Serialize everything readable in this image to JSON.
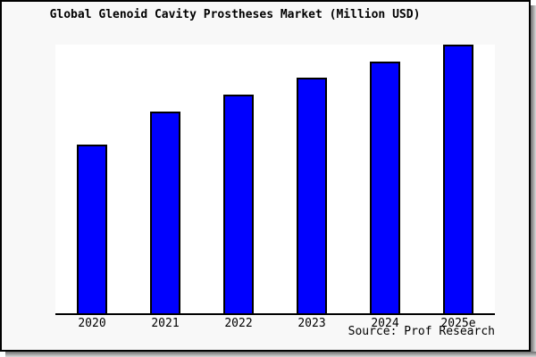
{
  "chart": {
    "title": "Global Glenoid Cavity Prostheses Market (Million USD)",
    "source": "Source: Prof Research"
  },
  "chart_data": {
    "type": "bar",
    "title": "Global Glenoid Cavity Prostheses Market (Million USD)",
    "categories": [
      "2020",
      "2021",
      "2022",
      "2023",
      "2024",
      "2025e"
    ],
    "values": [
      62.5,
      74.9,
      81.3,
      87.6,
      93.6,
      100
    ],
    "values_note": "No y-axis, gridlines or data labels are shown in the chart; values are bar heights relative to the tallest bar (2025e = 100)",
    "xlabel": "",
    "ylabel": "",
    "y_axis_visible": false,
    "gridlines": false,
    "legend": "none",
    "source": "Source: Prof Research",
    "colors": {
      "bar_fill": "#0000FE",
      "bar_border": "#000000",
      "canvas_background": "#F8F8F8",
      "plot_background": "#FFFFFF",
      "frame_border": "#000000",
      "shadow": "#6E6E6E",
      "text": "#000000"
    }
  }
}
